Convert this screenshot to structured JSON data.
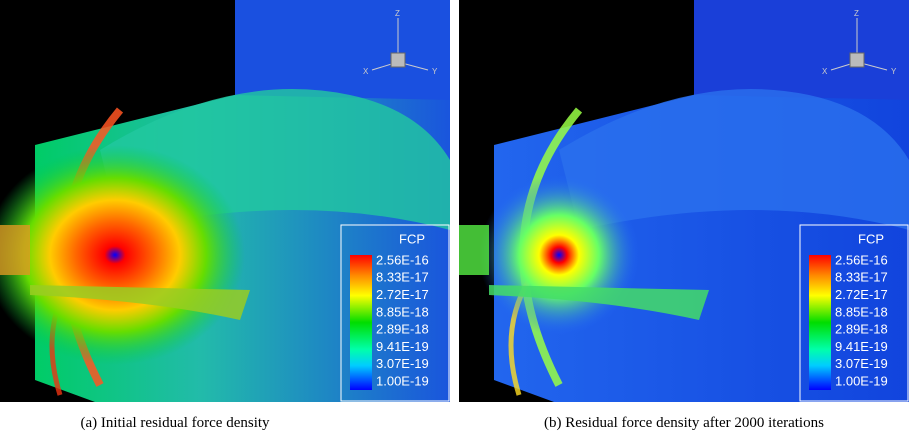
{
  "panels": [
    {
      "caption": "(a)  Initial residual force density",
      "axes": {
        "z": "Z",
        "x": "X",
        "y": "Y"
      },
      "legend": {
        "title": "FCP",
        "labels": [
          "2.56E-16",
          "8.33E-17",
          "2.72E-17",
          "8.85E-18",
          "2.89E-18",
          "9.41E-19",
          "3.07E-19",
          "1.00E-19"
        ]
      }
    },
    {
      "caption": "(b)  Residual force density after 2000 iterations",
      "axes": {
        "z": "Z",
        "x": "X",
        "y": "Y"
      },
      "legend": {
        "title": "FCP",
        "labels": [
          "2.56E-16",
          "8.33E-17",
          "2.72E-17",
          "8.85E-18",
          "2.89E-18",
          "9.41E-19",
          "3.07E-19",
          "1.00E-19"
        ]
      }
    }
  ]
}
